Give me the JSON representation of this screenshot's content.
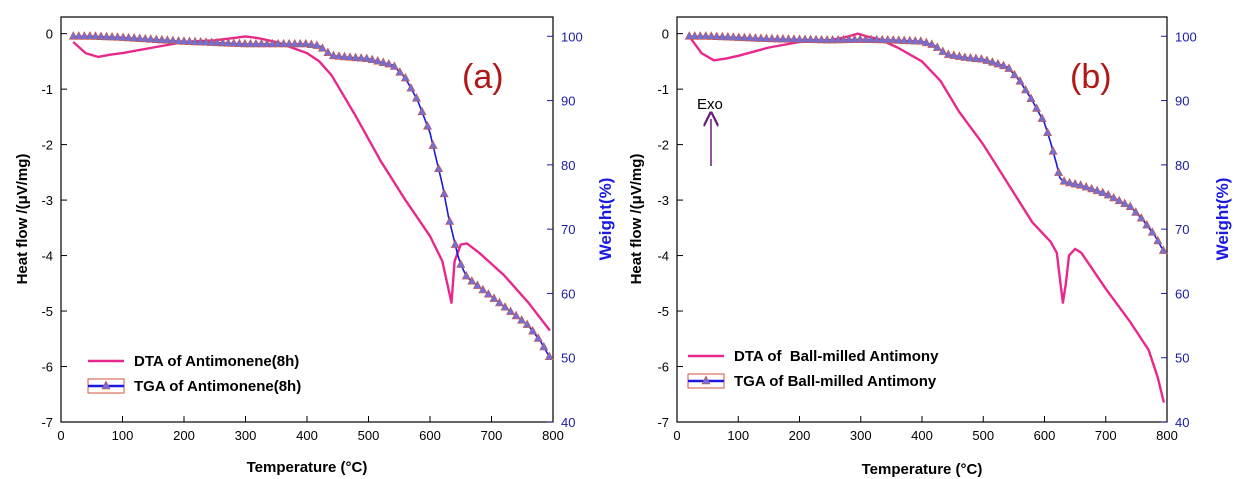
{
  "chart_data": [
    {
      "type": "line",
      "panel_label": "(a)",
      "xlabel": "Temperature (°C)",
      "ylabel": "Heat flow /(μV/mg)",
      "y2label": "Weight(%)",
      "xlim": [
        0,
        800
      ],
      "ylim": [
        -7,
        0.3
      ],
      "y2lim": [
        40,
        103
      ],
      "x_ticks": [
        0,
        100,
        200,
        300,
        400,
        500,
        600,
        700,
        800
      ],
      "y_ticks": [
        0,
        -1,
        -2,
        -3,
        -4,
        -5,
        -6,
        -7
      ],
      "y2_ticks": [
        100,
        90,
        80,
        70,
        60,
        50,
        40
      ],
      "legend_position": "bottom-left",
      "colors": {
        "dta": "#e8288c",
        "tga_line": "#1a1ae0",
        "tga_marker": "#7070d8",
        "tga_marker_edge": "#d0543c"
      },
      "series": [
        {
          "name": "DTA of Antimonene(8h)",
          "axis": "left",
          "x": [
            20,
            40,
            60,
            80,
            100,
            150,
            200,
            250,
            280,
            300,
            320,
            350,
            400,
            420,
            440,
            480,
            520,
            560,
            600,
            620,
            630,
            635,
            640,
            650,
            660,
            680,
            720,
            760,
            795
          ],
          "y": [
            -0.15,
            -0.35,
            -0.42,
            -0.38,
            -0.35,
            -0.25,
            -0.15,
            -0.12,
            -0.08,
            -0.05,
            -0.08,
            -0.15,
            -0.35,
            -0.5,
            -0.75,
            -1.5,
            -2.3,
            -3.0,
            -3.65,
            -4.1,
            -4.6,
            -4.85,
            -4.1,
            -3.8,
            -3.78,
            -3.95,
            -4.35,
            -4.85,
            -5.35
          ]
        },
        {
          "name": "TGA of Antimonene(8h)",
          "axis": "right",
          "x": [
            20,
            50,
            100,
            150,
            200,
            250,
            300,
            350,
            400,
            420,
            440,
            460,
            500,
            540,
            560,
            580,
            600,
            610,
            620,
            630,
            640,
            645,
            650,
            660,
            680,
            700,
            720,
            740,
            760,
            780,
            795
          ],
          "y": [
            100,
            100,
            99.8,
            99.5,
            99.2,
            99.0,
            98.8,
            98.8,
            98.8,
            98.5,
            97.0,
            96.8,
            96.5,
            95.5,
            93.5,
            90.0,
            85.0,
            81.0,
            77.0,
            72.0,
            68.0,
            66.0,
            64.5,
            62.5,
            61.0,
            59.5,
            58.0,
            56.5,
            55.0,
            52.5,
            50.0
          ]
        }
      ]
    },
    {
      "type": "line",
      "panel_label": "(b)",
      "xlabel": "Temperature (°C)",
      "ylabel": "Heat flow /(μV/mg)",
      "y2label": "Weight(%)",
      "xlim": [
        0,
        800
      ],
      "ylim": [
        -7,
        0.3
      ],
      "y2lim": [
        40,
        103
      ],
      "x_ticks": [
        0,
        100,
        200,
        300,
        400,
        500,
        600,
        700,
        800
      ],
      "y_ticks": [
        0,
        -1,
        -2,
        -3,
        -4,
        -5,
        -6,
        -7
      ],
      "y2_ticks": [
        100,
        90,
        80,
        70,
        60,
        50,
        40
      ],
      "legend_position": "bottom-left",
      "annotation": "Exo",
      "colors": {
        "dta": "#e8288c",
        "tga_line": "#1a1ae0",
        "tga_marker": "#7070d8",
        "tga_marker_edge": "#d0543c",
        "arrow": "#6a1a78"
      },
      "series": [
        {
          "name": "DTA of  Ball-milled Antimony",
          "axis": "left",
          "x": [
            20,
            40,
            60,
            80,
            100,
            150,
            200,
            250,
            280,
            295,
            310,
            330,
            360,
            400,
            430,
            460,
            500,
            540,
            580,
            610,
            620,
            625,
            630,
            635,
            640,
            650,
            660,
            700,
            740,
            770,
            785,
            795
          ],
          "y": [
            -0.05,
            -0.35,
            -0.48,
            -0.45,
            -0.4,
            -0.25,
            -0.15,
            -0.12,
            -0.05,
            0.0,
            -0.05,
            -0.1,
            -0.25,
            -0.5,
            -0.85,
            -1.4,
            -2.0,
            -2.7,
            -3.4,
            -3.75,
            -3.95,
            -4.4,
            -4.85,
            -4.5,
            -4.0,
            -3.88,
            -3.95,
            -4.6,
            -5.2,
            -5.7,
            -6.2,
            -6.65
          ]
        },
        {
          "name": "TGA of Ball-milled Antimony",
          "axis": "right",
          "x": [
            20,
            50,
            100,
            150,
            200,
            250,
            300,
            350,
            400,
            420,
            440,
            470,
            500,
            540,
            560,
            580,
            600,
            610,
            620,
            625,
            630,
            640,
            660,
            700,
            740,
            760,
            780,
            795
          ],
          "y": [
            100,
            100,
            99.8,
            99.6,
            99.5,
            99.4,
            99.5,
            99.4,
            99.2,
            98.6,
            97.2,
            96.7,
            96.4,
            95.2,
            93.0,
            90.0,
            86.5,
            83.5,
            80.0,
            78.0,
            77.5,
            77.2,
            76.8,
            75.5,
            73.5,
            71.5,
            69.0,
            66.5
          ]
        }
      ]
    }
  ]
}
